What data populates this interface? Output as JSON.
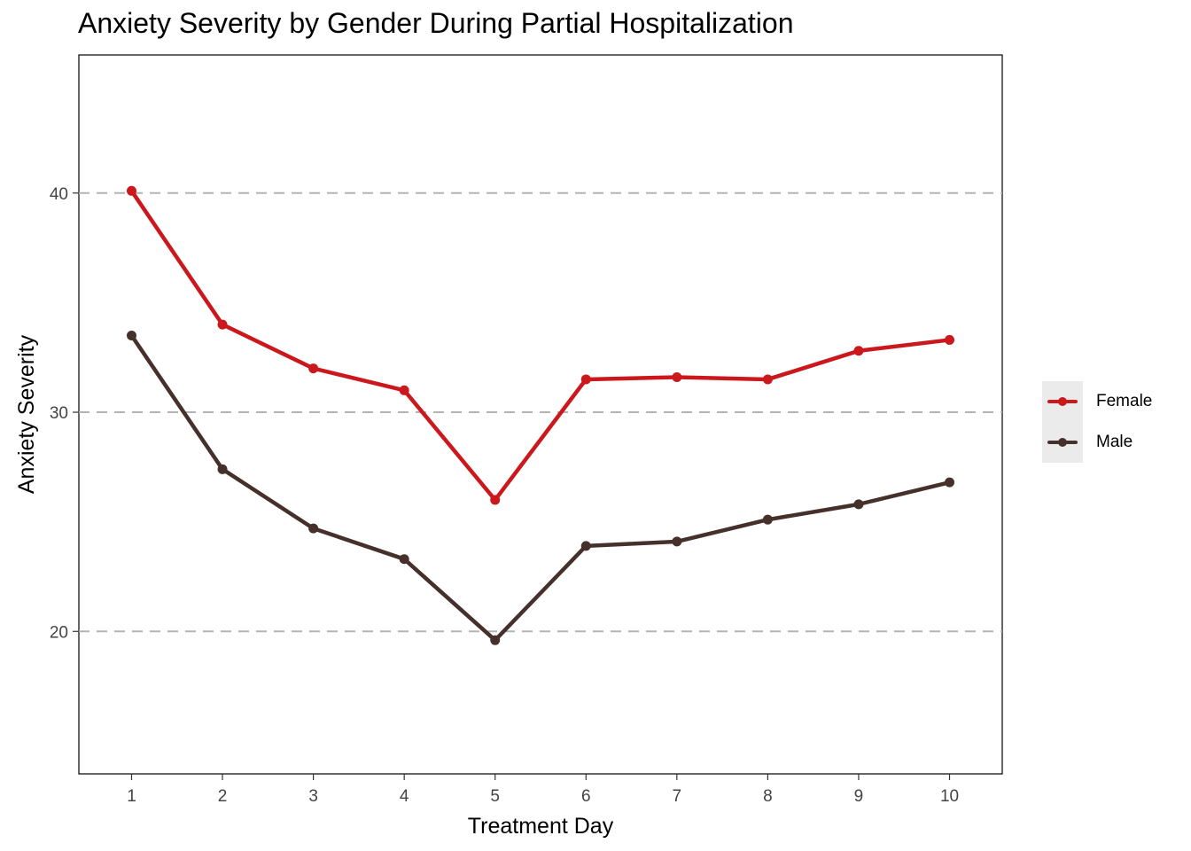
{
  "chart_data": {
    "type": "line",
    "title": "Anxiety Severity by Gender During Partial Hospitalization",
    "xlabel": "Treatment Day",
    "ylabel": "Anxiety Severity",
    "x": [
      1,
      2,
      3,
      4,
      5,
      6,
      7,
      8,
      9,
      10
    ],
    "xlim": [
      0.42,
      10.58
    ],
    "ylim": [
      13.5,
      46.3
    ],
    "y_ticks": [
      20,
      30,
      40
    ],
    "x_ticks": [
      1,
      2,
      3,
      4,
      5,
      6,
      7,
      8,
      9,
      10
    ],
    "grid": "horizontal dashed major lines",
    "legend_position": "right",
    "series": [
      {
        "name": "Female",
        "color": "#cb181d",
        "values": [
          40.1,
          34.0,
          32.0,
          31.0,
          26.0,
          31.5,
          31.6,
          31.5,
          32.8,
          33.3
        ]
      },
      {
        "name": "Male",
        "color": "#45302b",
        "values": [
          33.5,
          27.4,
          24.7,
          23.3,
          19.6,
          23.9,
          24.1,
          25.1,
          25.8,
          26.8
        ]
      }
    ]
  }
}
